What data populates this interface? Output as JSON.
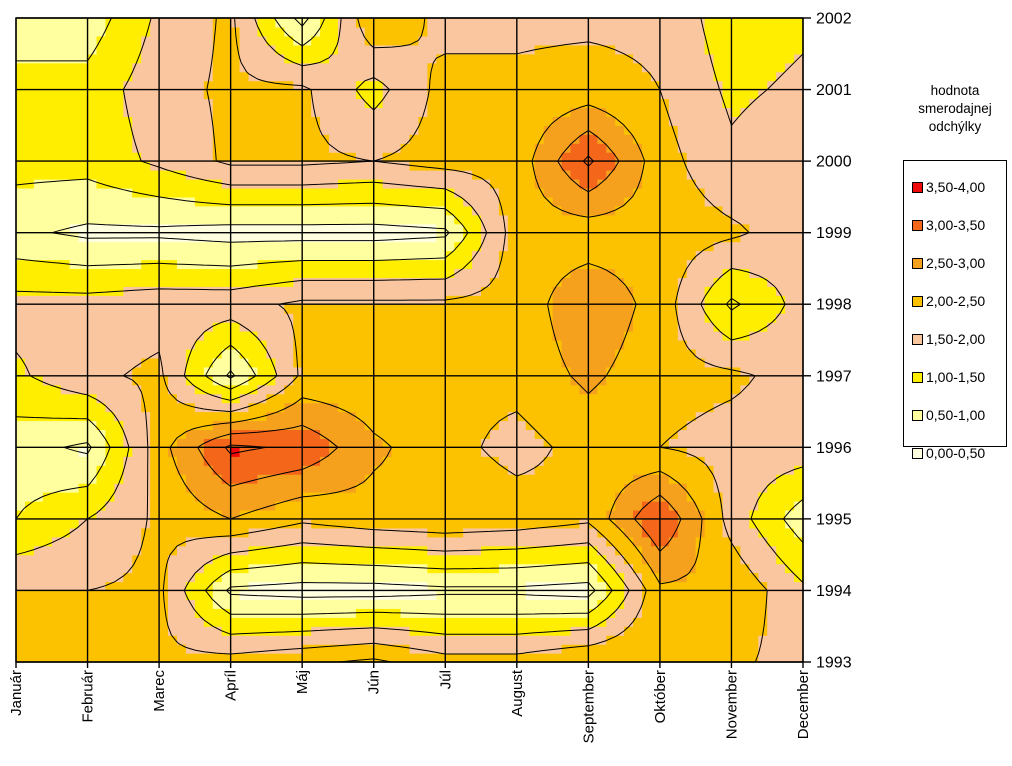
{
  "chart_data": {
    "type": "heatmap",
    "title": "",
    "xlabel": "",
    "ylabel": "",
    "x_categories": [
      "Január",
      "Február",
      "Marec",
      "Apríl",
      "Máj",
      "Jún",
      "Júl",
      "August",
      "September",
      "Október",
      "November",
      "December"
    ],
    "y_ticks": [
      "1993",
      "1994",
      "1995",
      "1996",
      "1997",
      "1998",
      "1999",
      "2000",
      "2001",
      "2002"
    ],
    "y_values": [
      1993,
      1994,
      1995,
      1996,
      1997,
      1998,
      1999,
      2000,
      2001,
      2002
    ],
    "ylim": [
      1993,
      2002
    ],
    "grid": true,
    "legend_position": "right",
    "legend_title": [
      "hodnota",
      "smerodajnej",
      "odchýlky"
    ],
    "levels": [
      {
        "label": "3,50-4,00",
        "min": 3.5,
        "max": 4.0,
        "color": "#ee0a0a"
      },
      {
        "label": "3,00-3,50",
        "min": 3.0,
        "max": 3.5,
        "color": "#f4661a"
      },
      {
        "label": "2,50-3,00",
        "min": 2.5,
        "max": 3.0,
        "color": "#f6a11e"
      },
      {
        "label": "2,00-2,50",
        "min": 2.0,
        "max": 2.5,
        "color": "#fcc200"
      },
      {
        "label": "1,50-2,00",
        "min": 1.5,
        "max": 2.0,
        "color": "#f9c6a0"
      },
      {
        "label": "1,00-1,50",
        "min": 1.0,
        "max": 1.5,
        "color": "#ffee00"
      },
      {
        "label": "0,50-1,00",
        "min": 0.5,
        "max": 1.0,
        "color": "#ffffa0"
      },
      {
        "label": "0,00-0,50",
        "min": 0.0,
        "max": 0.5,
        "color": "#ffffe0"
      }
    ],
    "z_rows_by_year": {
      "2002": [
        0.7,
        0.7,
        1.6,
        2.1,
        0.3,
        2.5,
        1.8,
        1.9,
        1.9,
        1.9,
        1.2,
        1.4
      ],
      "2001": [
        1.2,
        1.2,
        1.8,
        2.1,
        2.1,
        1.3,
        2.2,
        2.1,
        2.2,
        2.0,
        1.4,
        1.6
      ],
      "2000": [
        1.2,
        1.2,
        1.6,
        2.1,
        2.1,
        2.0,
        2.2,
        2.2,
        3.6,
        2.2,
        1.6,
        1.9
      ],
      "1999": [
        0.6,
        0.4,
        0.4,
        0.3,
        0.3,
        0.3,
        0.4,
        2.3,
        2.2,
        2.3,
        2.1,
        1.7
      ],
      "1998": [
        1.7,
        1.7,
        1.8,
        1.8,
        2.1,
        2.1,
        2.1,
        2.2,
        2.9,
        2.3,
        0.9,
        1.7
      ],
      "1997": [
        1.4,
        1.9,
        2.1,
        0.4,
        2.1,
        2.1,
        2.1,
        2.2,
        2.6,
        2.2,
        2.1,
        1.8
      ],
      "1996": [
        0.7,
        0.4,
        2.3,
        3.6,
        3.4,
        2.6,
        2.2,
        1.8,
        2.2,
        2.0,
        1.8,
        1.8
      ],
      "1995": [
        1.0,
        1.5,
        2.1,
        2.5,
        2.1,
        2.3,
        2.4,
        2.3,
        2.1,
        3.5,
        1.8,
        0.7
      ],
      "1994": [
        2.0,
        2.0,
        2.1,
        0.4,
        0.3,
        0.3,
        0.4,
        0.4,
        0.3,
        2.4,
        2.4,
        1.6
      ],
      "1993": [
        2.1,
        2.4,
        2.1,
        2.2,
        2.4,
        2.6,
        2.2,
        2.2,
        2.5,
        2.5,
        2.1,
        1.8
      ]
    }
  }
}
